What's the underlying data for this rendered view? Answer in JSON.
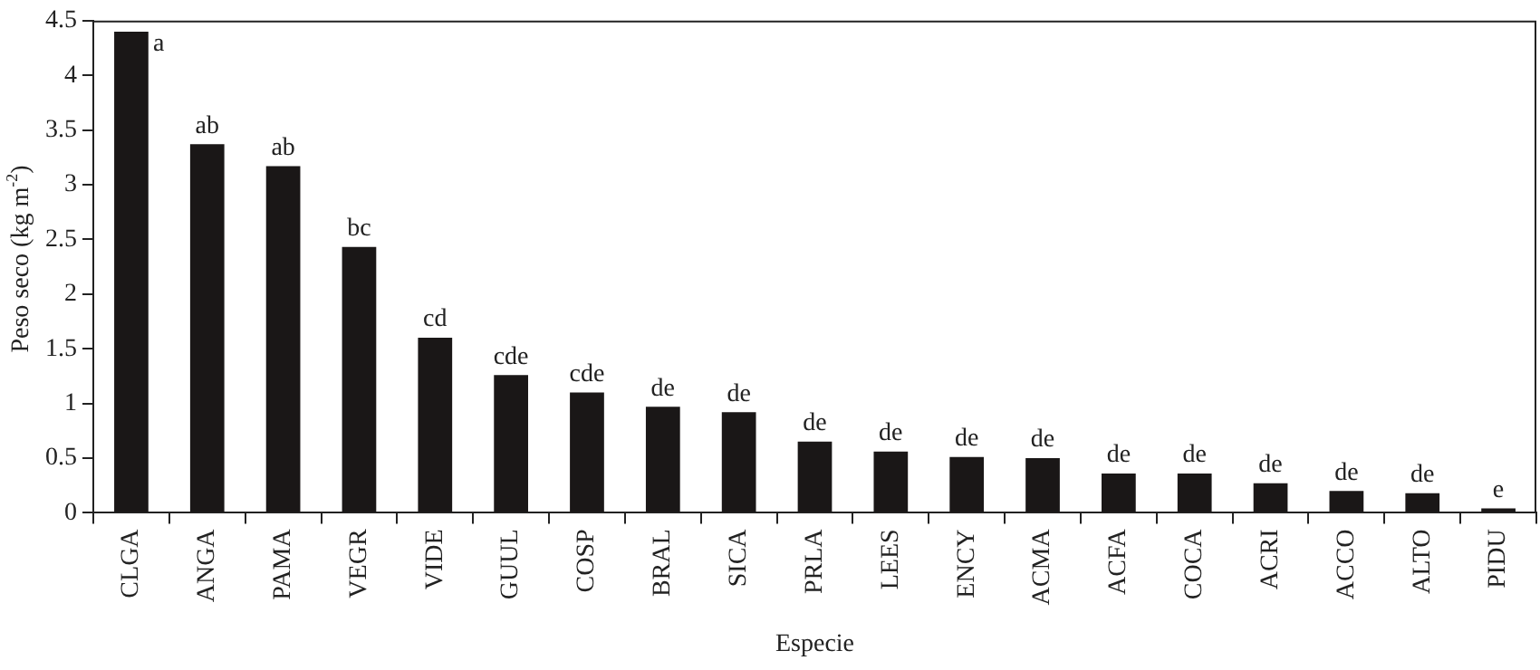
{
  "chart_data": {
    "type": "bar",
    "xlabel": "Especie",
    "ylabel": "Peso seco (kg m$^{-2}$)",
    "categories": [
      "CLGA",
      "ANGA",
      "PAMA",
      "VEGR",
      "VIDE",
      "GUUL",
      "COSP",
      "BRAL",
      "SICA",
      "PRLA",
      "LEES",
      "ENCY",
      "ACMA",
      "ACFA",
      "COCA",
      "ACRI",
      "ACCO",
      "ALTO",
      "PIDU"
    ],
    "values": [
      4.4,
      3.37,
      3.17,
      2.43,
      1.6,
      1.26,
      1.1,
      0.97,
      0.92,
      0.65,
      0.56,
      0.51,
      0.5,
      0.36,
      0.36,
      0.27,
      0.2,
      0.18,
      0.04
    ],
    "color": "#1a1717",
    "ylim": [
      0,
      4.5
    ],
    "yticks": [
      0,
      0.5,
      1,
      1.5,
      2,
      2.5,
      3,
      3.5,
      4,
      4.5
    ],
    "grid": false,
    "legend": false,
    "annotations": [
      {
        "text": "a",
        "x": "CLGA",
        "y": 4.4
      },
      {
        "text": "ab",
        "x": "ANGA",
        "y": 3.37
      },
      {
        "text": "ab",
        "x": "PAMA",
        "y": 3.17
      },
      {
        "text": "bc",
        "x": "VEGR",
        "y": 2.43
      },
      {
        "text": "cd",
        "x": "VIDE",
        "y": 1.6
      },
      {
        "text": "cde",
        "x": "GUUL",
        "y": 1.26
      },
      {
        "text": "cde",
        "x": "COSP",
        "y": 1.1
      },
      {
        "text": "de",
        "x": "BRAL",
        "y": 0.97
      },
      {
        "text": "de",
        "x": "SICA",
        "y": 0.92
      },
      {
        "text": "de",
        "x": "PRLA",
        "y": 0.65
      },
      {
        "text": "de",
        "x": "LEES",
        "y": 0.56
      },
      {
        "text": "de",
        "x": "ENCY",
        "y": 0.51
      },
      {
        "text": "de",
        "x": "ACMA",
        "y": 0.5
      },
      {
        "text": "de",
        "x": "ACFA",
        "y": 0.36
      },
      {
        "text": "de",
        "x": "COCA",
        "y": 0.36
      },
      {
        "text": "de",
        "x": "ACRI",
        "y": 0.27
      },
      {
        "text": "de",
        "x": "ACCO",
        "y": 0.2
      },
      {
        "text": "de",
        "x": "ALTO",
        "y": 0.18
      },
      {
        "text": "e",
        "x": "PIDU",
        "y": 0.04
      }
    ]
  }
}
